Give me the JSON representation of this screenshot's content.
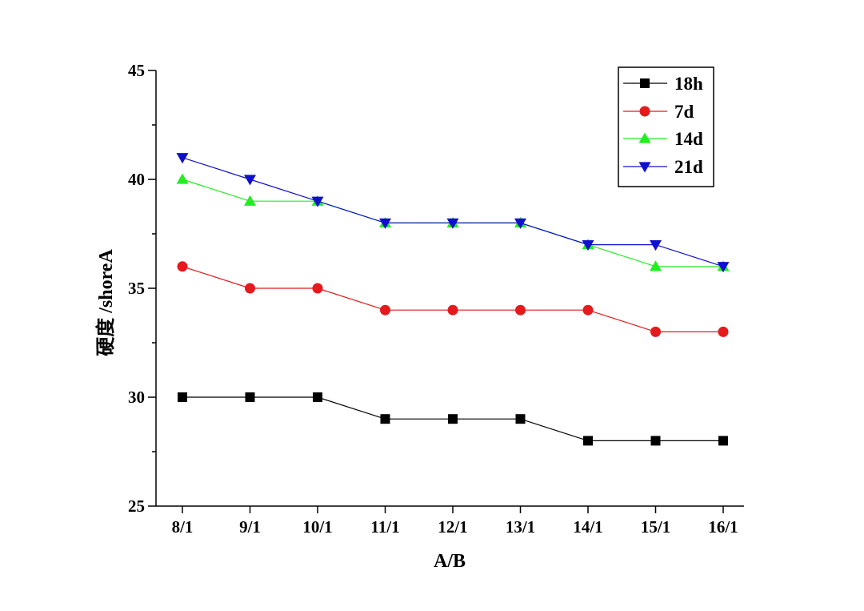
{
  "chart_data": {
    "type": "line",
    "xlabel": "A/B",
    "ylabel": "硬度 /shoreA",
    "categories": [
      "8/1",
      "9/1",
      "10/1",
      "11/1",
      "12/1",
      "13/1",
      "14/1",
      "15/1",
      "16/1"
    ],
    "ylim": [
      25,
      45
    ],
    "yticks": [
      25,
      30,
      35,
      40,
      45
    ],
    "grid": false,
    "legend_position": "top-right",
    "series": [
      {
        "name": "18h",
        "color": "#000000",
        "marker": "square",
        "values": [
          30,
          30,
          30,
          29,
          29,
          29,
          28,
          28,
          28
        ]
      },
      {
        "name": "7d",
        "color": "#e41a1c",
        "marker": "circle",
        "values": [
          36,
          35,
          35,
          34,
          34,
          34,
          34,
          33,
          33
        ]
      },
      {
        "name": "14d",
        "color": "#22ee22",
        "marker": "triangle-up",
        "values": [
          40,
          39,
          39,
          38,
          38,
          38,
          37,
          36,
          36
        ]
      },
      {
        "name": "21d",
        "color": "#1010cc",
        "marker": "triangle-down",
        "values": [
          41,
          40,
          39,
          38,
          38,
          38,
          37,
          37,
          36
        ]
      }
    ]
  }
}
